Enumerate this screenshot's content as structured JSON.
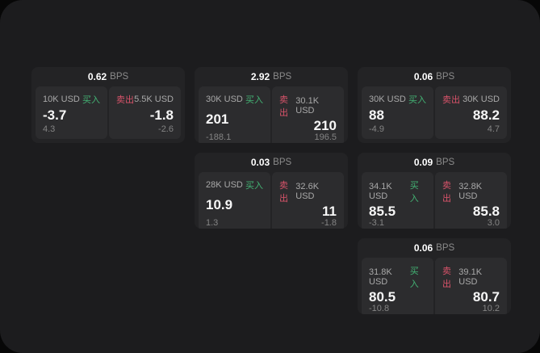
{
  "colors": {
    "buy_green": "#43b374",
    "sell_red": "#d9536a",
    "panel_bg": "#1c1c1e",
    "card_bg": "#232325",
    "pane_bg": "#2c2c2e"
  },
  "bps_unit_label": "BPS",
  "cards": [
    {
      "row": 1,
      "col": 1,
      "bps": "0.62",
      "buy": {
        "size": "10K USD",
        "side_label": "买入",
        "price": "-3.7",
        "delta": "4.3"
      },
      "sell": {
        "side_label": "卖出",
        "size": "5.5K USD",
        "price": "-1.8",
        "delta": "-2.6"
      }
    },
    {
      "row": 1,
      "col": 2,
      "bps": "2.92",
      "buy": {
        "size": "30K USD",
        "side_label": "买入",
        "price": "201",
        "delta": "-188.1"
      },
      "sell": {
        "side_label": "卖出",
        "size": "30.1K USD",
        "price": "210",
        "delta": "196.5"
      }
    },
    {
      "row": 1,
      "col": 3,
      "bps": "0.06",
      "buy": {
        "size": "30K USD",
        "side_label": "买入",
        "price": "88",
        "delta": "-4.9"
      },
      "sell": {
        "side_label": "卖出",
        "size": "30K USD",
        "price": "88.2",
        "delta": "4.7"
      }
    },
    {
      "row": 2,
      "col": 2,
      "bps": "0.03",
      "buy": {
        "size": "28K USD",
        "side_label": "买入",
        "price": "10.9",
        "delta": "1.3"
      },
      "sell": {
        "side_label": "卖出",
        "size": "32.6K USD",
        "price": "11",
        "delta": "-1.8"
      }
    },
    {
      "row": 2,
      "col": 3,
      "bps": "0.09",
      "buy": {
        "size": "34.1K USD",
        "side_label": "买入",
        "price": "85.5",
        "delta": "-3.1"
      },
      "sell": {
        "side_label": "卖出",
        "size": "32.8K USD",
        "price": "85.8",
        "delta": "3.0"
      }
    },
    {
      "row": 3,
      "col": 3,
      "bps": "0.06",
      "buy": {
        "size": "31.8K USD",
        "side_label": "买入",
        "price": "80.5",
        "delta": "-10.8"
      },
      "sell": {
        "side_label": "卖出",
        "size": "39.1K USD",
        "price": "80.7",
        "delta": "10.2"
      }
    }
  ]
}
